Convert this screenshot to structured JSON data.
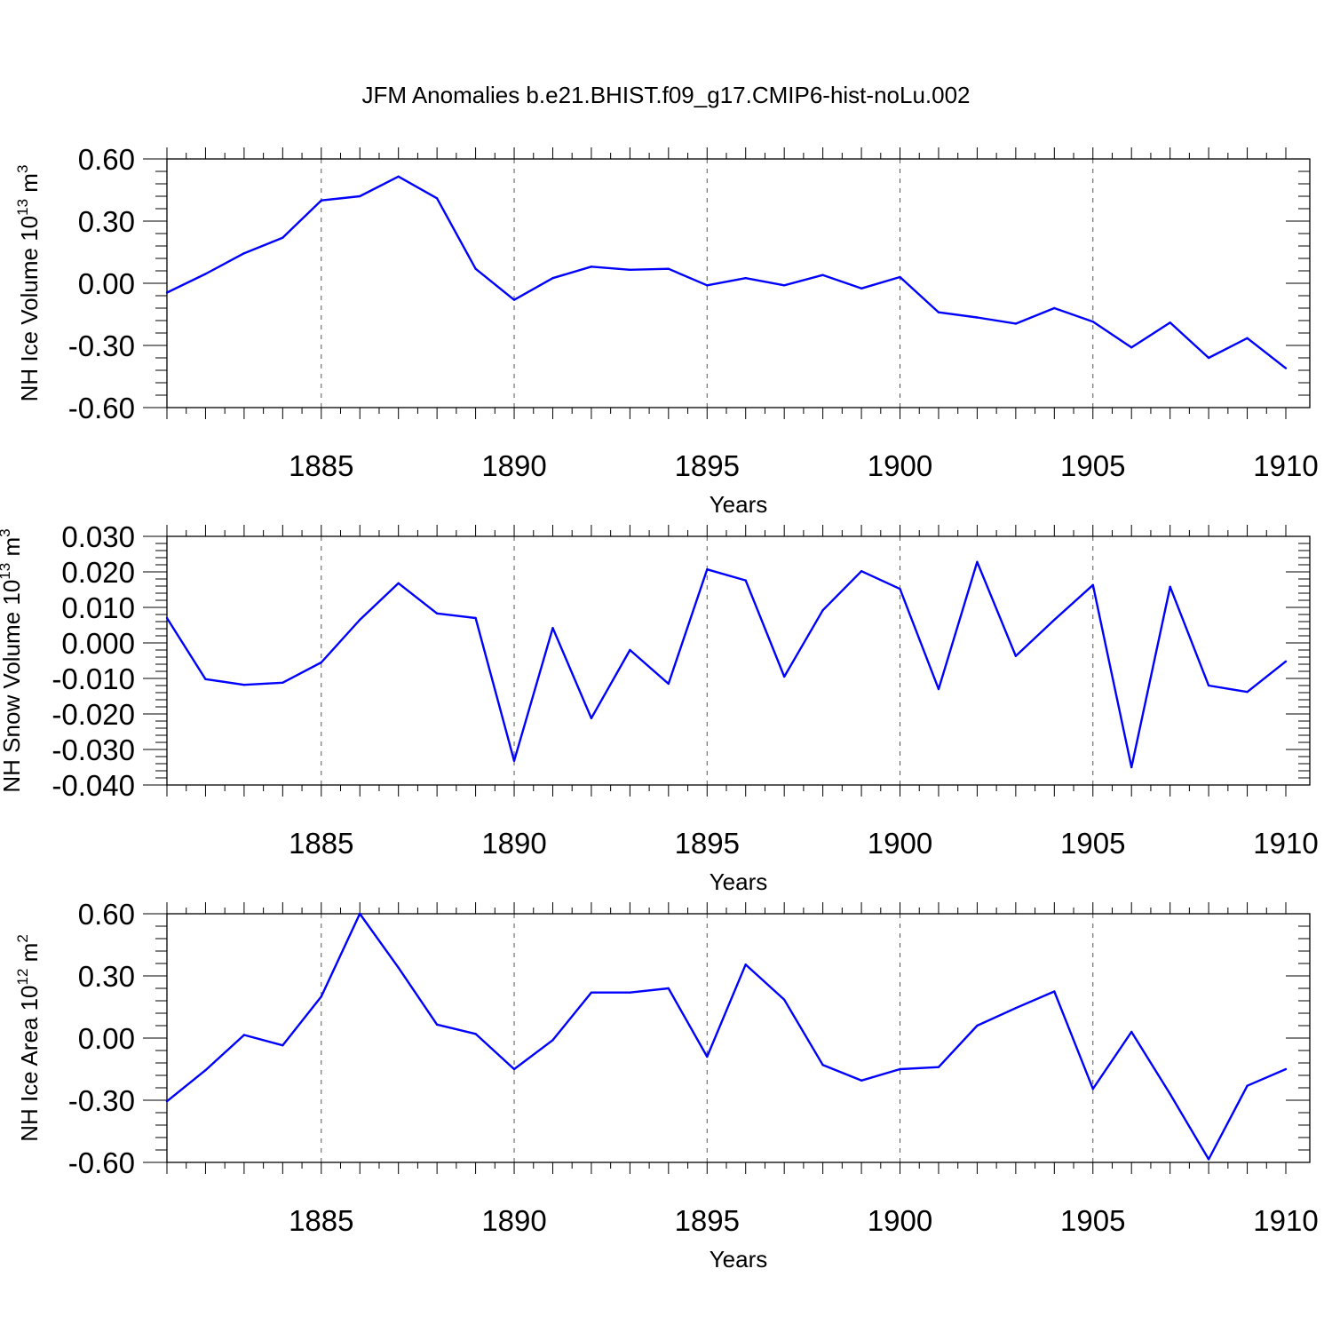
{
  "title": "JFM Anomalies b.e21.BHIST.f09_g17.CMIP6-hist-noLu.002",
  "colors": {
    "line": "#0000ff",
    "axis": "#000000",
    "grid": "#555555"
  },
  "chart_data": [
    {
      "type": "line",
      "ylabel_main": "NH Ice Volume 10",
      "ylabel_exp": "13",
      "ylabel_unit": " m",
      "ylabel_unit_exp": "3",
      "xlabel": "Years",
      "xlim": [
        1881,
        1910
      ],
      "ylim": [
        -0.6,
        0.6
      ],
      "yticks": [
        0.6,
        0.3,
        0.0,
        -0.3,
        -0.6
      ],
      "ytick_labels": [
        "0.60",
        "0.30",
        "0.00",
        "-0.30",
        "-0.60"
      ],
      "xticks": [
        1885,
        1890,
        1895,
        1900,
        1905,
        1910
      ],
      "xtick_labels": [
        "1885",
        "1890",
        "1895",
        "1900",
        "1905",
        "1910"
      ],
      "grid_x": [
        1885,
        1890,
        1895,
        1900,
        1905
      ],
      "x": [
        1881,
        1882,
        1883,
        1884,
        1885,
        1886,
        1887,
        1888,
        1889,
        1890,
        1891,
        1892,
        1893,
        1894,
        1895,
        1896,
        1897,
        1898,
        1899,
        1900,
        1901,
        1902,
        1903,
        1904,
        1905,
        1906,
        1907,
        1908,
        1909,
        1910
      ],
      "values": [
        -0.045,
        0.045,
        0.145,
        0.22,
        0.4,
        0.42,
        0.515,
        0.41,
        0.07,
        -0.08,
        0.025,
        0.08,
        0.065,
        0.07,
        -0.01,
        0.025,
        -0.01,
        0.04,
        -0.025,
        0.03,
        -0.14,
        -0.165,
        -0.195,
        -0.12,
        -0.185,
        -0.31,
        -0.19,
        -0.36,
        -0.265,
        -0.41
      ]
    },
    {
      "type": "line",
      "ylabel_main": "NH Snow Volume 10",
      "ylabel_exp": "13",
      "ylabel_unit": " m",
      "ylabel_unit_exp": "3",
      "xlabel": "Years",
      "xlim": [
        1881,
        1910
      ],
      "ylim": [
        -0.04,
        0.03
      ],
      "yticks": [
        0.03,
        0.02,
        0.01,
        0.0,
        -0.01,
        -0.02,
        -0.03,
        -0.04
      ],
      "ytick_labels": [
        "0.030",
        "0.020",
        "0.010",
        "0.000",
        "-0.010",
        "-0.020",
        "-0.030",
        "-0.040"
      ],
      "xticks": [
        1885,
        1890,
        1895,
        1900,
        1905,
        1910
      ],
      "xtick_labels": [
        "1885",
        "1890",
        "1895",
        "1900",
        "1905",
        "1910"
      ],
      "grid_x": [
        1885,
        1890,
        1895,
        1900,
        1905
      ],
      "x": [
        1881,
        1882,
        1883,
        1884,
        1885,
        1886,
        1887,
        1888,
        1889,
        1890,
        1891,
        1892,
        1893,
        1894,
        1895,
        1896,
        1897,
        1898,
        1899,
        1900,
        1901,
        1902,
        1903,
        1904,
        1905,
        1906,
        1907,
        1908,
        1909,
        1910
      ],
      "values": [
        0.007,
        -0.0102,
        -0.0118,
        -0.0112,
        -0.0055,
        0.0065,
        0.0168,
        0.0083,
        0.007,
        -0.0332,
        0.0042,
        -0.0212,
        -0.002,
        -0.0115,
        0.0207,
        0.0176,
        -0.0095,
        0.0092,
        0.0202,
        0.0152,
        -0.013,
        0.0228,
        -0.0037,
        0.0065,
        0.0163,
        -0.035,
        0.0158,
        -0.012,
        -0.0138,
        -0.0052
      ]
    },
    {
      "type": "line",
      "ylabel_main": "NH Ice Area 10",
      "ylabel_exp": "12",
      "ylabel_unit": " m",
      "ylabel_unit_exp": "2",
      "xlabel": "Years",
      "xlim": [
        1881,
        1910
      ],
      "ylim": [
        -0.6,
        0.6
      ],
      "yticks": [
        0.6,
        0.3,
        0.0,
        -0.3,
        -0.6
      ],
      "ytick_labels": [
        "0.60",
        "0.30",
        "0.00",
        "-0.30",
        "-0.60"
      ],
      "xticks": [
        1885,
        1890,
        1895,
        1900,
        1905,
        1910
      ],
      "xtick_labels": [
        "1885",
        "1890",
        "1895",
        "1900",
        "1905",
        "1910"
      ],
      "grid_x": [
        1885,
        1890,
        1895,
        1900,
        1905
      ],
      "x": [
        1881,
        1882,
        1883,
        1884,
        1885,
        1886,
        1887,
        1888,
        1889,
        1890,
        1891,
        1892,
        1893,
        1894,
        1895,
        1896,
        1897,
        1898,
        1899,
        1900,
        1901,
        1902,
        1903,
        1904,
        1905,
        1906,
        1907,
        1908,
        1909,
        1910
      ],
      "values": [
        -0.305,
        -0.155,
        0.015,
        -0.035,
        0.2,
        0.6,
        0.34,
        0.065,
        0.02,
        -0.15,
        -0.01,
        0.22,
        0.22,
        0.24,
        -0.09,
        0.355,
        0.185,
        -0.13,
        -0.205,
        -0.15,
        -0.14,
        0.06,
        0.145,
        0.225,
        -0.245,
        0.03,
        -0.27,
        -0.585,
        -0.23,
        -0.15
      ]
    }
  ]
}
